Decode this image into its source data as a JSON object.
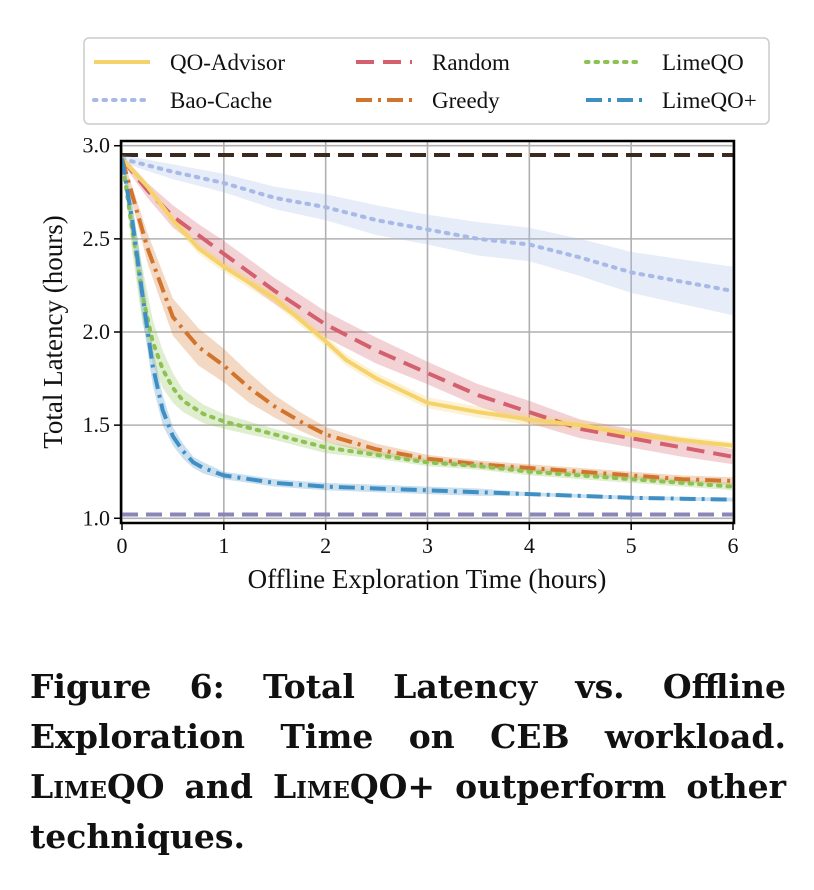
{
  "chart_data": {
    "type": "line",
    "xlabel": "Offline Exploration Time (hours)",
    "ylabel": "Total Latency (hours)",
    "xlim": [
      0,
      6
    ],
    "ylim": [
      0.98,
      3.02
    ],
    "xticks": [
      0,
      1,
      2,
      3,
      4,
      5,
      6
    ],
    "yticks": [
      1.0,
      1.5,
      2.0,
      2.5,
      3.0
    ],
    "xtick_labels": [
      "0",
      "1",
      "2",
      "3",
      "4",
      "5",
      "6"
    ],
    "ytick_labels": [
      "1.0",
      "1.5",
      "2.0",
      "2.5",
      "3.0"
    ],
    "grid": true,
    "legend_position": "top",
    "reference_lines": [
      {
        "y": 2.95,
        "color": "#3a2a20",
        "dash": "long-dash"
      },
      {
        "y": 1.02,
        "color": "#8a86b8",
        "dash": "long-dash"
      }
    ],
    "series": [
      {
        "name": "QO-Advisor",
        "color": "#f6d36a",
        "dash": "solid",
        "x": [
          0,
          0.25,
          0.5,
          0.75,
          1,
          1.5,
          2,
          2.2,
          2.5,
          3,
          3.5,
          4,
          4.5,
          5,
          5.5,
          6
        ],
        "y": [
          2.93,
          2.78,
          2.6,
          2.45,
          2.35,
          2.18,
          1.95,
          1.85,
          1.75,
          1.62,
          1.57,
          1.53,
          1.5,
          1.45,
          1.42,
          1.39
        ],
        "band": [
          0.02,
          0.02,
          0.03,
          0.03,
          0.03,
          0.03,
          0.03,
          0.03,
          0.03,
          0.03,
          0.03,
          0.03,
          0.03,
          0.02,
          0.02,
          0.02
        ]
      },
      {
        "name": "Random",
        "color": "#d45f6d",
        "dash": "dash",
        "x": [
          0,
          0.25,
          0.5,
          0.75,
          1,
          1.5,
          2,
          2.5,
          3,
          3.5,
          4,
          4.5,
          5,
          5.5,
          6
        ],
        "y": [
          2.93,
          2.76,
          2.62,
          2.52,
          2.42,
          2.22,
          2.04,
          1.9,
          1.78,
          1.66,
          1.57,
          1.48,
          1.43,
          1.38,
          1.33
        ],
        "band": [
          0.02,
          0.04,
          0.06,
          0.06,
          0.07,
          0.07,
          0.07,
          0.07,
          0.06,
          0.06,
          0.06,
          0.05,
          0.05,
          0.05,
          0.04
        ]
      },
      {
        "name": "LimeQO",
        "color": "#8dc152",
        "dash": "dot",
        "x": [
          0,
          0.1,
          0.2,
          0.3,
          0.4,
          0.5,
          0.6,
          0.8,
          1,
          1.5,
          2,
          2.5,
          3,
          3.5,
          4,
          4.5,
          5,
          5.5,
          6
        ],
        "y": [
          2.93,
          2.55,
          2.2,
          1.95,
          1.8,
          1.7,
          1.63,
          1.56,
          1.52,
          1.45,
          1.38,
          1.34,
          1.3,
          1.28,
          1.25,
          1.23,
          1.21,
          1.19,
          1.17
        ],
        "band": [
          0.02,
          0.12,
          0.15,
          0.12,
          0.1,
          0.08,
          0.06,
          0.05,
          0.04,
          0.03,
          0.03,
          0.02,
          0.02,
          0.02,
          0.02,
          0.02,
          0.02,
          0.02,
          0.02
        ]
      },
      {
        "name": "LimeQO+",
        "color": "#3f8fc4",
        "dash": "dash-dot",
        "x": [
          0,
          0.1,
          0.2,
          0.3,
          0.4,
          0.5,
          0.6,
          0.7,
          0.8,
          1,
          1.5,
          2,
          2.5,
          3,
          3.5,
          4,
          4.5,
          5,
          5.5,
          6
        ],
        "y": [
          2.93,
          2.6,
          2.2,
          1.82,
          1.58,
          1.44,
          1.36,
          1.3,
          1.27,
          1.23,
          1.19,
          1.17,
          1.16,
          1.15,
          1.14,
          1.13,
          1.12,
          1.11,
          1.105,
          1.1
        ],
        "band": [
          0.02,
          0.1,
          0.12,
          0.1,
          0.08,
          0.05,
          0.04,
          0.03,
          0.03,
          0.02,
          0.02,
          0.02,
          0.02,
          0.02,
          0.02,
          0.01,
          0.01,
          0.01,
          0.01,
          0.01
        ]
      },
      {
        "name": "Bao-Cache",
        "color": "#a7b9e6",
        "dash": "dot",
        "x": [
          0,
          0.5,
          1,
          1.5,
          2,
          2.5,
          3,
          3.5,
          4,
          4.5,
          5,
          5.5,
          6
        ],
        "y": [
          2.93,
          2.86,
          2.8,
          2.72,
          2.67,
          2.6,
          2.55,
          2.5,
          2.47,
          2.4,
          2.32,
          2.27,
          2.22
        ],
        "band": [
          0.02,
          0.04,
          0.05,
          0.06,
          0.07,
          0.08,
          0.08,
          0.09,
          0.09,
          0.1,
          0.11,
          0.12,
          0.13
        ]
      },
      {
        "name": "Greedy",
        "color": "#d3742c",
        "dash": "dash-dot",
        "x": [
          0,
          0.25,
          0.5,
          0.75,
          1,
          1.25,
          1.5,
          1.75,
          2,
          2.5,
          3,
          3.5,
          4,
          4.5,
          5,
          5.5,
          6
        ],
        "y": [
          2.93,
          2.45,
          2.08,
          1.92,
          1.82,
          1.7,
          1.6,
          1.52,
          1.45,
          1.37,
          1.32,
          1.29,
          1.27,
          1.25,
          1.23,
          1.21,
          1.2
        ],
        "band": [
          0.02,
          0.08,
          0.1,
          0.1,
          0.09,
          0.08,
          0.06,
          0.05,
          0.04,
          0.03,
          0.02,
          0.02,
          0.02,
          0.02,
          0.02,
          0.02,
          0.02
        ]
      }
    ],
    "legend_order": [
      "QO-Advisor",
      "Random",
      "LimeQO",
      "Bao-Cache",
      "Greedy",
      "LimeQO+"
    ]
  },
  "caption": {
    "prefix": "Figure 6: Total Latency vs. Offline Exploration Time on CEB workload. ",
    "name1": "LimeQO",
    "middle": " and ",
    "name2": "LimeQO+",
    "suffix": " outperform other techniques."
  }
}
